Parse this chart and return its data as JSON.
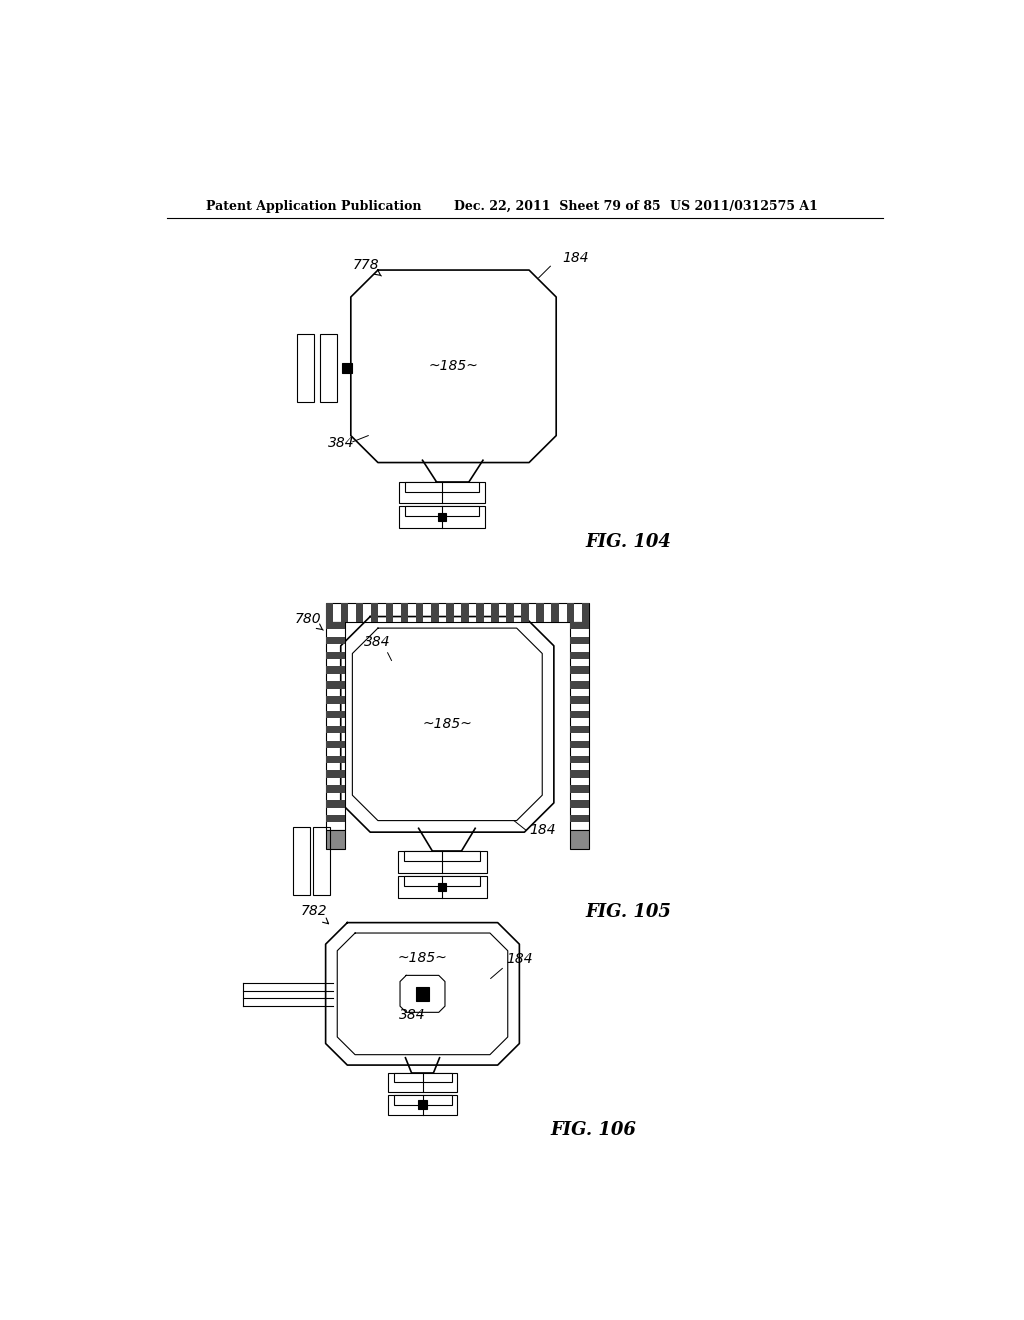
{
  "bg_color": "#ffffff",
  "header_left": "Patent Application Publication",
  "header_mid": "Dec. 22, 2011  Sheet 79 of 85",
  "header_right": "US 2011/0312575 A1"
}
